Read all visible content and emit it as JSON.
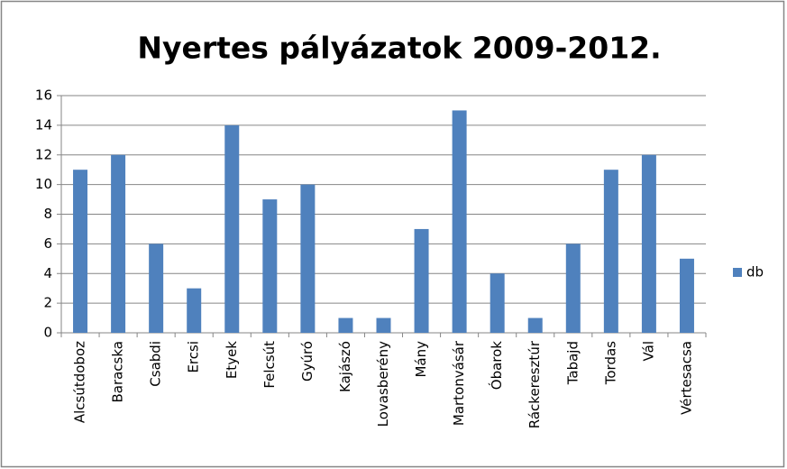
{
  "chart_data": {
    "type": "bar",
    "title": "Nyertes pályázatok 2009-2012.",
    "categories": [
      "Alcsútdoboz",
      "Baracska",
      "Csabdi",
      "Ercsi",
      "Etyek",
      "Felcsút",
      "Gyúró",
      "Kajászó",
      "Lovasberény",
      "Mány",
      "Martonvásár",
      "Óbarok",
      "Ráckeresztúr",
      "Tabajd",
      "Tordas",
      "Vál",
      "Vértesacsa"
    ],
    "series": [
      {
        "name": "db",
        "color": "#4f81bd",
        "values": [
          11,
          12,
          6,
          3,
          14,
          9,
          10,
          1,
          1,
          7,
          15,
          4,
          1,
          6,
          11,
          12,
          5
        ]
      }
    ],
    "ylim": [
      0,
      16
    ],
    "yticks": [
      0,
      2,
      4,
      6,
      8,
      10,
      12,
      14,
      16
    ],
    "grid": true,
    "legend": "right"
  }
}
